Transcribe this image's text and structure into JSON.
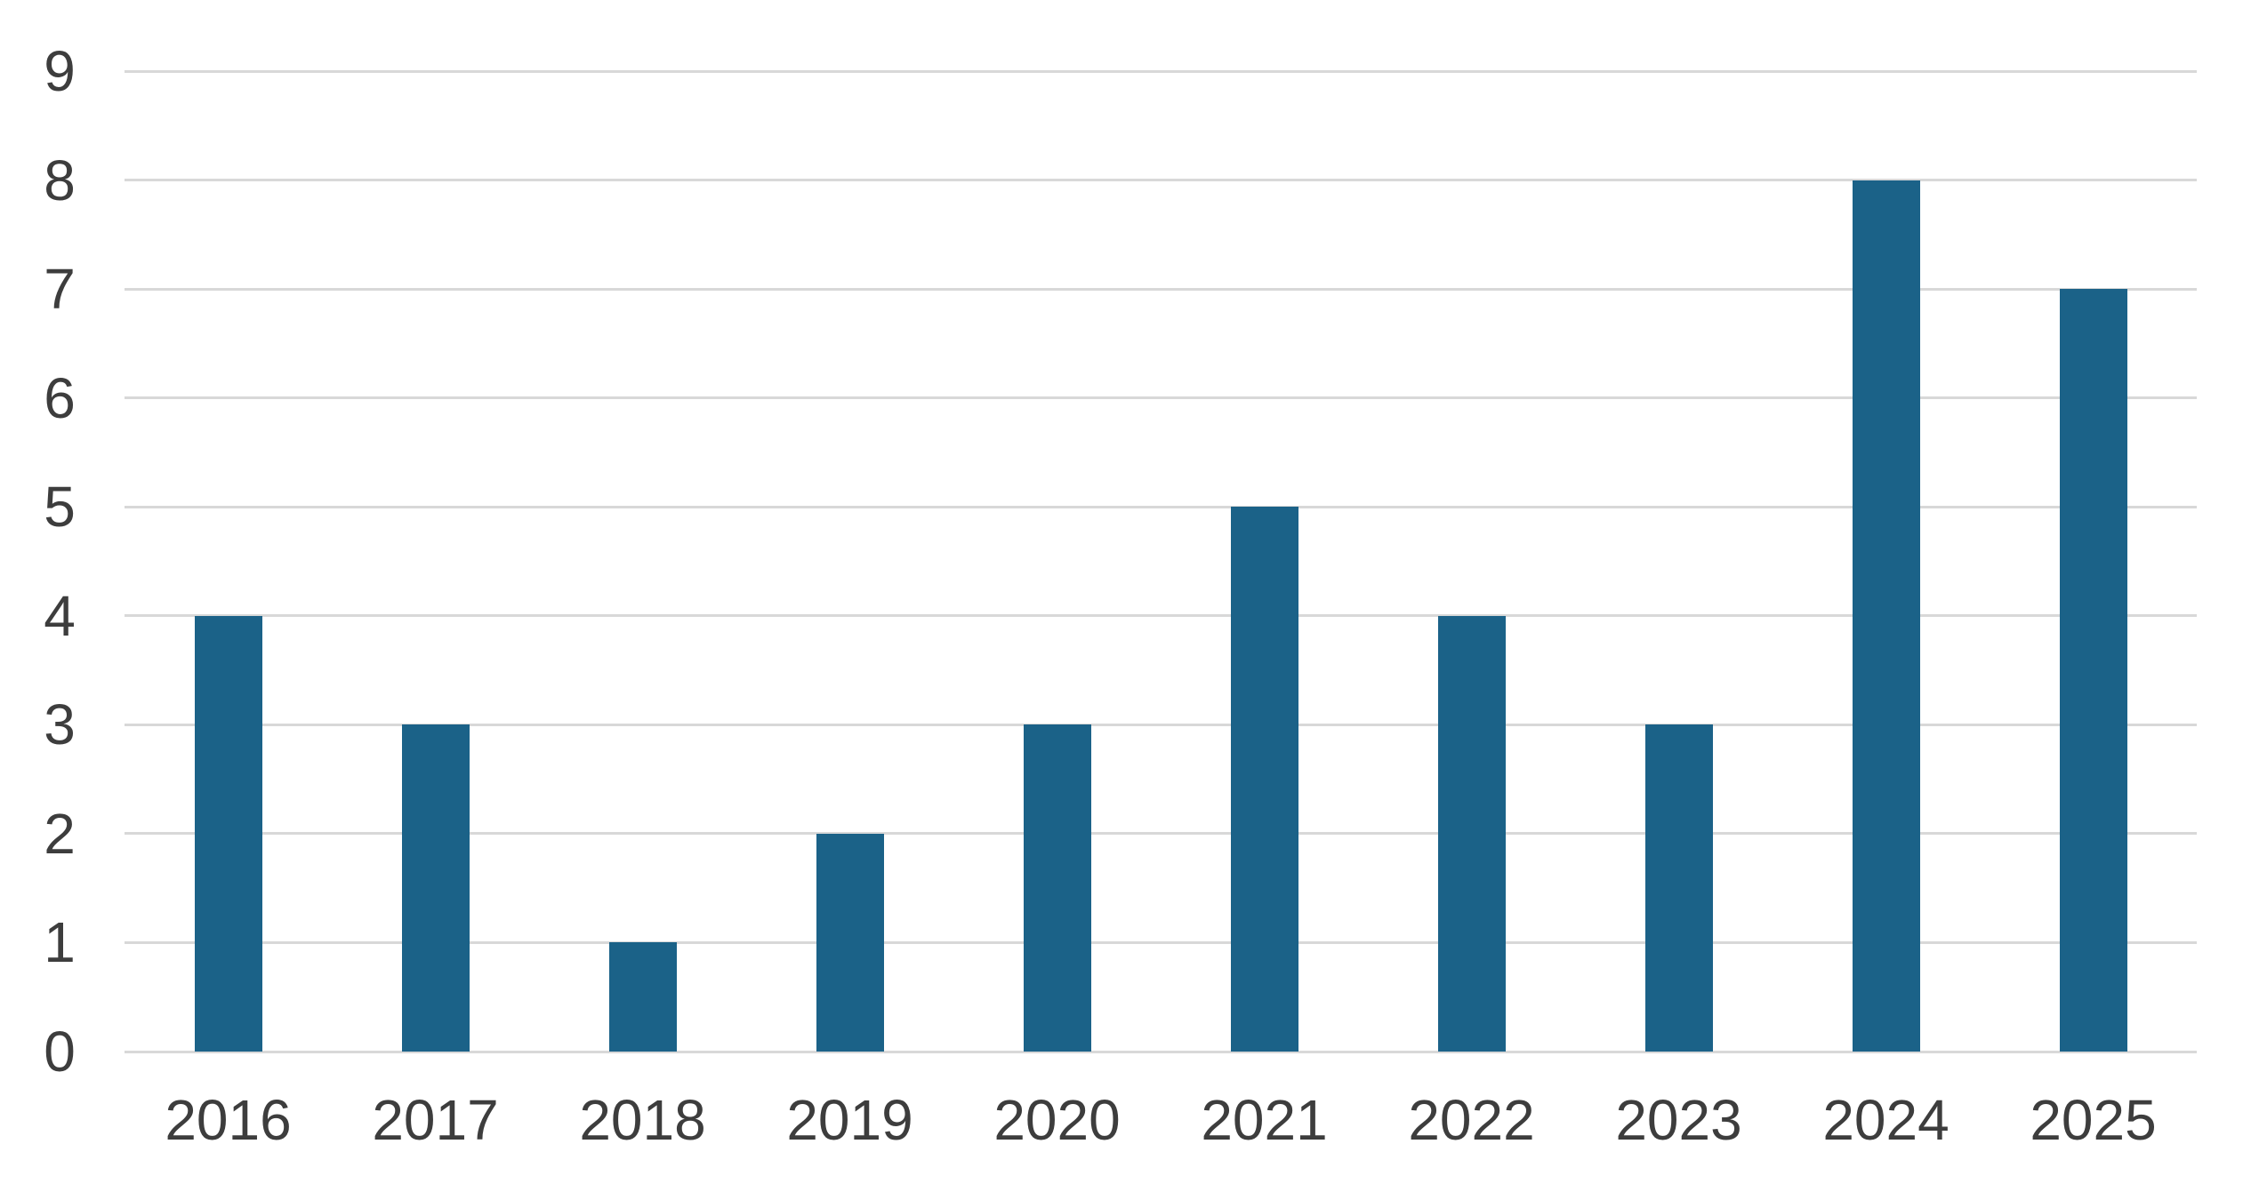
{
  "chart_data": {
    "type": "bar",
    "title": "",
    "categories": [
      "2016",
      "2017",
      "2018",
      "2019",
      "2020",
      "2021",
      "2022",
      "2023",
      "2024",
      "2025"
    ],
    "values": [
      4,
      3,
      1,
      2,
      3,
      5,
      4,
      3,
      8,
      7
    ],
    "xlabel": "",
    "ylabel": "",
    "ylim": [
      0,
      9
    ],
    "yticks": [
      0,
      1,
      2,
      3,
      4,
      5,
      6,
      7,
      8,
      9
    ],
    "grid": "horizontal",
    "legend": "none",
    "colors": {
      "bar": "#1b6288",
      "gridline": "#d8d8d8",
      "tick_label": "#3d3d3d",
      "background": "#ffffff"
    }
  }
}
